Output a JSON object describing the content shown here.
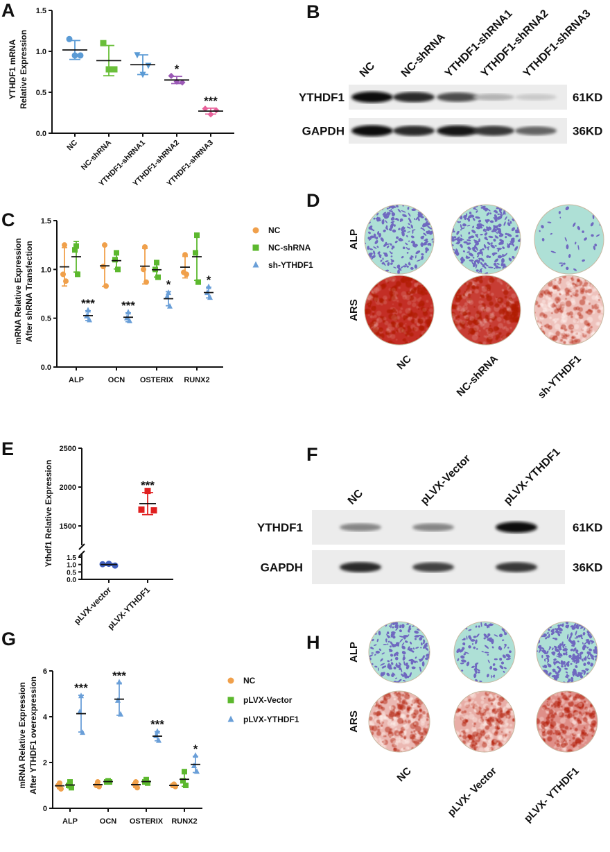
{
  "panels": {
    "A": "A",
    "B": "B",
    "C": "C",
    "D": "D",
    "E": "E",
    "F": "F",
    "G": "G",
    "H": "H"
  },
  "chart_data": [
    {
      "id": "A",
      "type": "scatter",
      "ylabel": [
        "YTHDF1 mRNA",
        "Relative Expression"
      ],
      "ylim": [
        0,
        1.5
      ],
      "yticks": [
        "0.0",
        "0.5",
        "1.0",
        "1.5"
      ],
      "categories": [
        "NC",
        "NC-shRNA",
        "YTHDF1-shRNA1",
        "YTHDF1-shRNA2",
        "YTHDF1-shRNA3"
      ],
      "colors": [
        "#5b9bd5",
        "#6abf3a",
        "#5b9bd5",
        "#9b59b6",
        "#e8609a"
      ],
      "markers": [
        "circle",
        "square",
        "triangle-down",
        "diamond",
        "diamond"
      ],
      "values": [
        [
          1.15,
          0.95,
          0.95
        ],
        [
          1.1,
          0.78,
          0.78
        ],
        [
          0.96,
          0.83,
          0.72
        ],
        [
          0.7,
          0.62,
          0.63
        ],
        [
          0.3,
          0.28,
          0.23
        ]
      ],
      "significance": [
        "",
        "",
        "",
        "*",
        "***"
      ]
    },
    {
      "id": "C",
      "type": "scatter",
      "ylabel": [
        "mRNA Relative Expression",
        "After shRNA Transfection"
      ],
      "ylim": [
        0,
        1.5
      ],
      "yticks": [
        "0.0",
        "0.5",
        "1.0",
        "1.5"
      ],
      "categories": [
        "ALP",
        "OCN",
        "OSTERIX",
        "RUNX2"
      ],
      "legend_position": "right",
      "series": [
        {
          "name": "NC",
          "color": "#f0a04b",
          "marker": "circle",
          "values": [
            [
              1.25,
              0.95,
              0.88
            ],
            [
              1.25,
              1.03,
              0.83
            ],
            [
              1.23,
              1.0,
              0.87
            ],
            [
              1.15,
              0.97,
              0.95
            ]
          ],
          "significance": [
            "",
            "",
            "",
            ""
          ]
        },
        {
          "name": "NC-shRNA",
          "color": "#5cb82e",
          "marker": "square",
          "values": [
            [
              1.24,
              1.2,
              0.95
            ],
            [
              1.17,
              1.1,
              1.0
            ],
            [
              1.07,
              1.0,
              0.92
            ],
            [
              1.35,
              1.17,
              0.87
            ]
          ],
          "significance": [
            "",
            "",
            "",
            ""
          ]
        },
        {
          "name": "sh-YTHDF1",
          "color": "#6a9fd8",
          "marker": "triangle",
          "values": [
            [
              0.58,
              0.52,
              0.48
            ],
            [
              0.56,
              0.5,
              0.47
            ],
            [
              0.76,
              0.72,
              0.62
            ],
            [
              0.82,
              0.76,
              0.71
            ]
          ],
          "significance": [
            "***",
            "***",
            "*",
            "*"
          ]
        }
      ]
    },
    {
      "id": "E",
      "type": "scatter",
      "ylabel": [
        "Ythdf1 Relative Expression"
      ],
      "y_axis_break": true,
      "yticks_low": [
        "0.0",
        "0.5",
        "1.0",
        "1.5"
      ],
      "yticks_high": [
        "1500",
        "2000",
        "2500"
      ],
      "categories": [
        "pLVX-vector",
        "pLVX-YTHDF1"
      ],
      "colors": [
        "#4060c0",
        "#e02020"
      ],
      "markers": [
        "circle",
        "square"
      ],
      "values": [
        [
          1.05,
          1.02,
          0.93
        ],
        [
          1950,
          1710,
          1700
        ]
      ],
      "significance": [
        "",
        "***"
      ]
    },
    {
      "id": "G",
      "type": "scatter",
      "ylabel": [
        "mRNA Relative Expression",
        "After YTHDF1 overexpression"
      ],
      "ylim": [
        0,
        6
      ],
      "yticks": [
        "0",
        "2",
        "4",
        "6"
      ],
      "categories": [
        "ALP",
        "OCN",
        "OSTERIX",
        "RUNX2"
      ],
      "legend_position": "right",
      "series": [
        {
          "name": "NC",
          "color": "#f0a04b",
          "marker": "circle",
          "values": [
            [
              1.1,
              1.0,
              0.85
            ],
            [
              1.15,
              1.0,
              0.95
            ],
            [
              1.15,
              1.05,
              0.9
            ],
            [
              1.05,
              1.0,
              0.95
            ]
          ],
          "significance": [
            "",
            "",
            "",
            ""
          ]
        },
        {
          "name": "pLVX-Vector",
          "color": "#5cb82e",
          "marker": "square",
          "values": [
            [
              1.15,
              1.0,
              0.9
            ],
            [
              1.2,
              1.15,
              1.15
            ],
            [
              1.25,
              1.15,
              1.1
            ],
            [
              1.6,
              1.2,
              1.0
            ]
          ],
          "significance": [
            "",
            "",
            "",
            ""
          ]
        },
        {
          "name": "pLVX-YTHDF1",
          "color": "#6a9fd8",
          "marker": "triangle",
          "values": [
            [
              4.9,
              4.2,
              3.3
            ],
            [
              5.5,
              4.7,
              4.1
            ],
            [
              3.35,
              3.15,
              2.95
            ],
            [
              2.3,
              1.85,
              1.6
            ]
          ],
          "significance": [
            "***",
            "***",
            "***",
            "*"
          ]
        }
      ]
    }
  ],
  "blots": {
    "B": {
      "lanes": [
        "NC",
        "NC-shRNA",
        "YTHDF1-shRNA1",
        "YTHDF1-shRNA2",
        "YTHDF1-shRNA3"
      ],
      "rows": [
        {
          "protein": "YTHDF1",
          "size": "61KD",
          "band_intensity": [
            1.0,
            0.85,
            0.7,
            0.25,
            0.15
          ]
        },
        {
          "protein": "GAPDH",
          "size": "36KD",
          "band_intensity": [
            1.0,
            0.85,
            0.95,
            0.8,
            0.6
          ]
        }
      ]
    },
    "F": {
      "lanes": [
        "NC",
        "pLVX-Vector",
        "pLVX-YTHDF1"
      ],
      "rows": [
        {
          "protein": "YTHDF1",
          "size": "61KD",
          "band_intensity": [
            0.45,
            0.45,
            1.0
          ]
        },
        {
          "protein": "GAPDH",
          "size": "36KD",
          "band_intensity": [
            0.85,
            0.75,
            0.8
          ]
        }
      ]
    }
  },
  "stains": {
    "D": {
      "columns": [
        "NC",
        "NC-shRNA",
        "sh-YTHDF1"
      ],
      "rows": [
        {
          "label": "ALP",
          "stain_level": [
            0.45,
            0.55,
            0.05
          ]
        },
        {
          "label": "ARS",
          "stain_level": [
            0.92,
            0.85,
            0.2
          ]
        }
      ]
    },
    "H": {
      "columns": [
        "NC",
        "pLVX- Vector",
        "pLVX- YTHDF1"
      ],
      "rows": [
        {
          "label": "ALP",
          "stain_level": [
            0.35,
            0.2,
            0.55
          ]
        },
        {
          "label": "ARS",
          "stain_level": [
            0.25,
            0.3,
            0.45
          ]
        }
      ]
    }
  }
}
